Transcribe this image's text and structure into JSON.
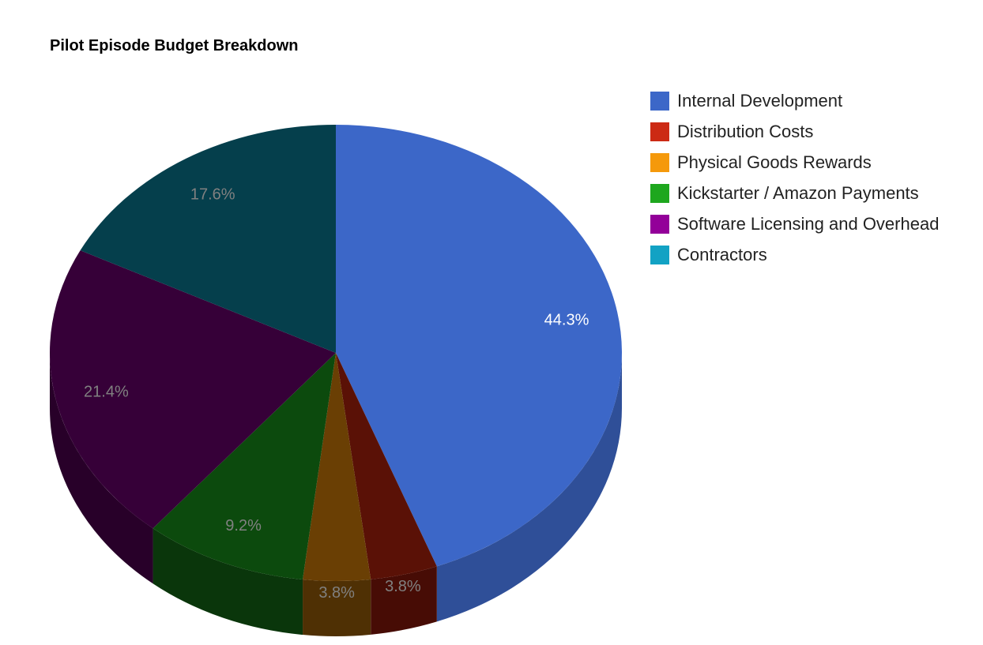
{
  "chart_data": {
    "type": "pie",
    "style": "3d",
    "title": "Pilot Episode Budget Breakdown",
    "legend_position": "right",
    "slices": [
      {
        "label": "Internal Development",
        "value": 44.3,
        "display": "44.3%",
        "color": "#3c67c8",
        "top": "#3c67c8",
        "side": "#2f4f98",
        "label_color": "#ffffff"
      },
      {
        "label": "Distribution Costs",
        "value": 3.8,
        "display": "3.8%",
        "color": "#cc2a14",
        "top": "#5a1106",
        "side": "#470c05",
        "label_color": "#808080"
      },
      {
        "label": "Physical Goods Rewards",
        "value": 3.8,
        "display": "3.8%",
        "color": "#f5990b",
        "top": "#6a3f04",
        "side": "#4f3004",
        "label_color": "#808080"
      },
      {
        "label": "Kickstarter / Amazon Payments",
        "value": 9.2,
        "display": "9.2%",
        "color": "#1ea71e",
        "top": "#0c4a0d",
        "side": "#0a360b",
        "label_color": "#808080"
      },
      {
        "label": "Software Licensing and Overhead",
        "value": 21.4,
        "display": "21.4%",
        "color": "#930099",
        "top": "#360038",
        "side": "#280029",
        "label_color": "#808080"
      },
      {
        "label": "Contractors",
        "value": 17.6,
        "display": "17.6%",
        "color": "#12a2c4",
        "top": "#053f4c",
        "side": "#04313b",
        "label_color": "#808080"
      }
    ]
  }
}
